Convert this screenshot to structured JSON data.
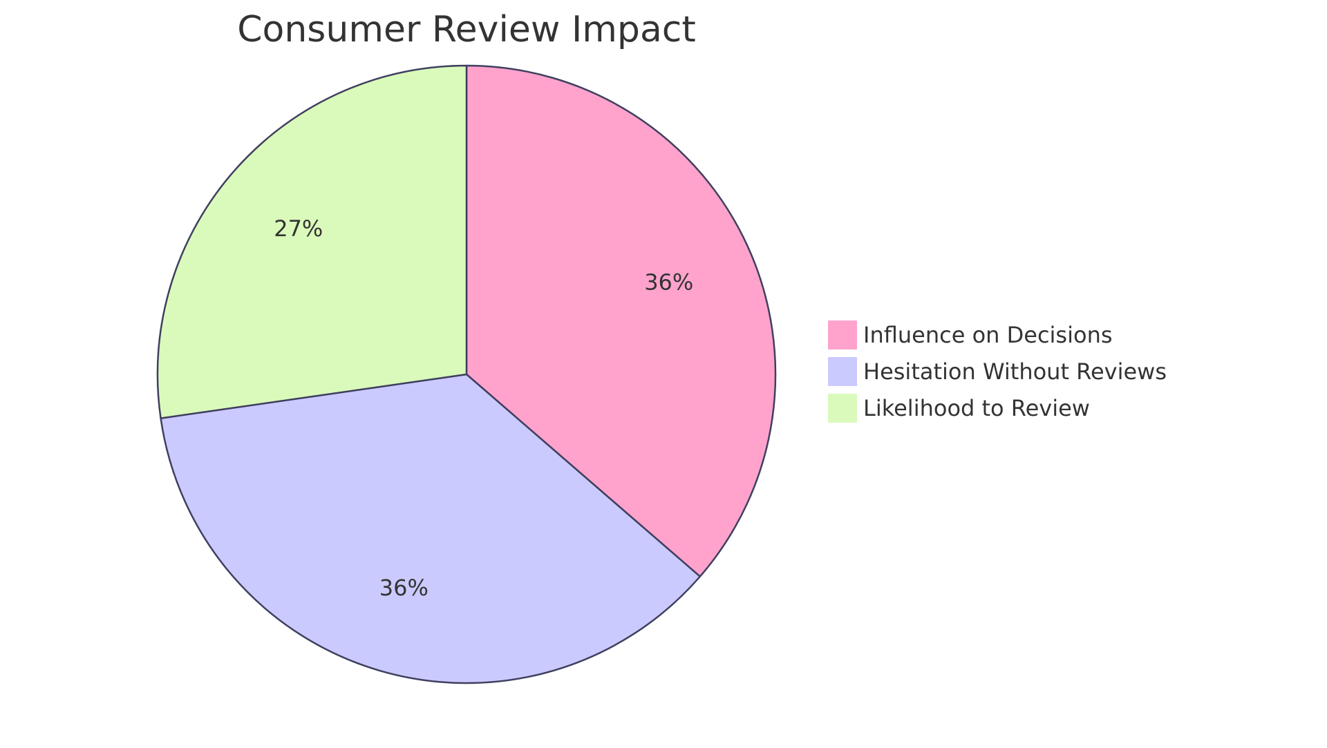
{
  "chart_data": {
    "type": "pie",
    "title": "Consumer Review Impact",
    "slices": [
      {
        "label": "Influence on Decisions",
        "value": 36,
        "display": "36%",
        "color": "#FFA3CD"
      },
      {
        "label": "Hesitation Without Reviews",
        "value": 36,
        "display": "36%",
        "color": "#CACAFF"
      },
      {
        "label": "Likelihood to Review",
        "value": 27,
        "display": "27%",
        "color": "#DAFABB"
      }
    ],
    "stroke_color": "#3F3F5F",
    "legend_placement": "right"
  }
}
